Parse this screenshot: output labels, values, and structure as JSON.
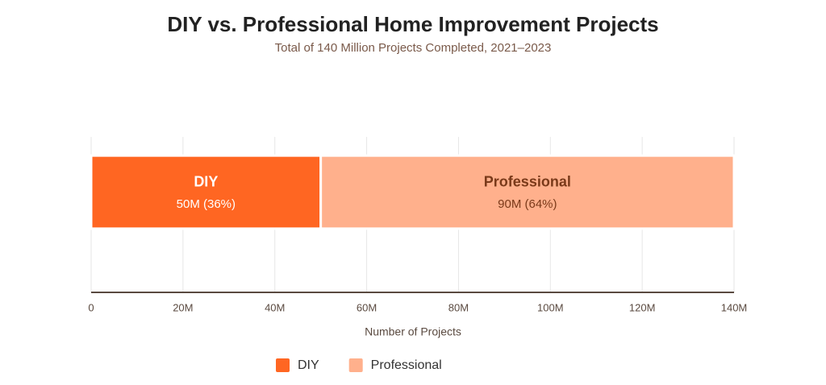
{
  "chart_data": {
    "type": "stacked-bar-horizontal",
    "title": "DIY vs. Professional Home Improvement Projects",
    "subtitle": "Total of 140 Million Projects Completed, 2021–2023",
    "x_label": "Number of Projects",
    "categories": [
      null
    ],
    "series": [
      {
        "name": "DIY",
        "color": "#ff6622",
        "values": [
          50
        ],
        "value_labels": [
          "50M (36%)"
        ]
      },
      {
        "name": "Professional",
        "color": "#ffb08c",
        "values": [
          90
        ],
        "value_labels": [
          "90M (64%)"
        ]
      }
    ],
    "xlim": [
      0,
      140
    ],
    "xticks": [
      0,
      {
        "value": 20,
        "label": "20M"
      },
      {
        "value": 40,
        "label": "40M"
      },
      {
        "value": 60,
        "label": "60M"
      },
      {
        "value": 80,
        "label": "80M"
      },
      {
        "value": 100,
        "label": "100M"
      },
      {
        "value": 120,
        "label": "120M"
      },
      {
        "value": 140,
        "label": "140M"
      }
    ],
    "grid": true,
    "legend": "bottom"
  }
}
